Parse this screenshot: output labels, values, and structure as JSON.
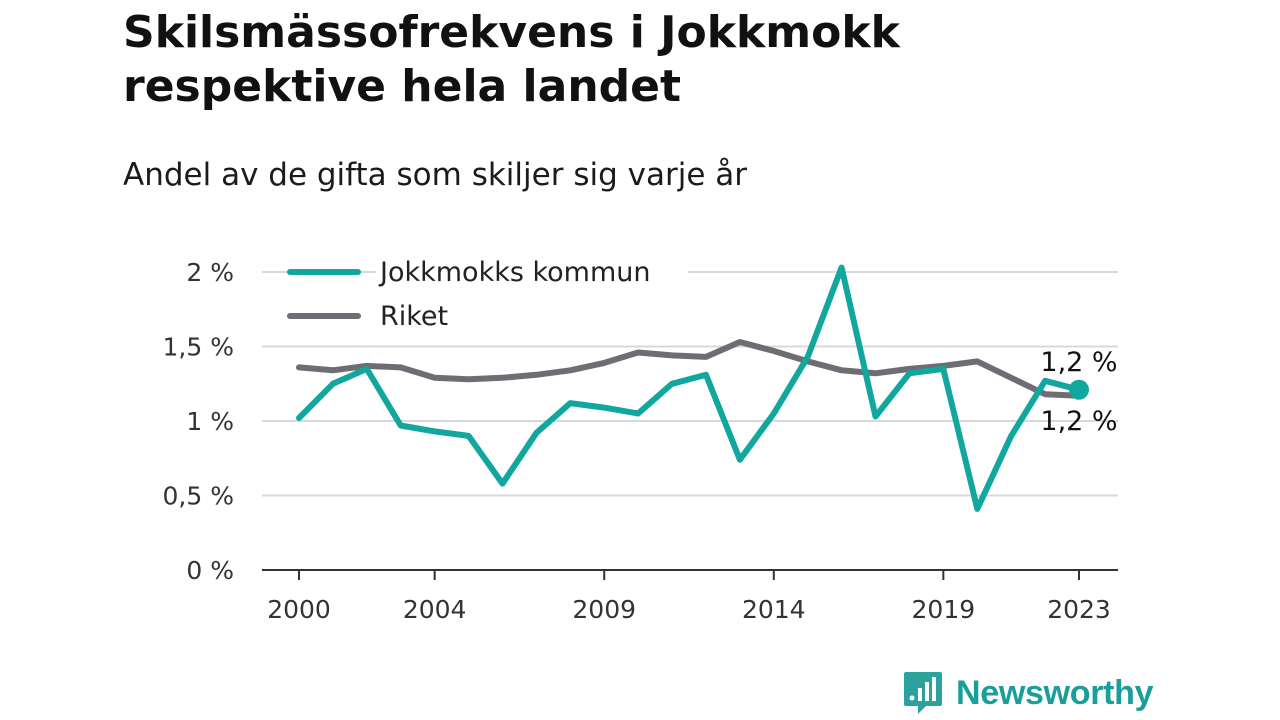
{
  "header": {
    "title": "Skilsmässofrekvens i Jokkmokk respektive hela landet",
    "subtitle": "Andel av de gifta som skiljer sig varje år"
  },
  "brand": {
    "name": "Newsworthy",
    "icon": "newsworthy-logo-icon",
    "color": "#1a9e99"
  },
  "chart_data": {
    "type": "line",
    "title": "Skilsmässofrekvens i Jokkmokk respektive hela landet",
    "subtitle": "Andel av de gifta som skiljer sig varje år",
    "x": [
      2000,
      2001,
      2002,
      2003,
      2004,
      2005,
      2006,
      2007,
      2008,
      2009,
      2010,
      2011,
      2012,
      2013,
      2014,
      2015,
      2016,
      2017,
      2018,
      2019,
      2020,
      2021,
      2022,
      2023
    ],
    "x_ticks": [
      2000,
      2004,
      2009,
      2014,
      2019,
      2023
    ],
    "y_ticks": [
      0,
      0.5,
      1,
      1.5,
      2
    ],
    "y_tick_labels": [
      "0 %",
      "0,5 %",
      "1 %",
      "1,5 %",
      "2 %"
    ],
    "ylim": [
      0,
      2
    ],
    "xlabel": "",
    "ylabel": "",
    "grid": "horizontal",
    "legend": "top-left",
    "series": [
      {
        "name": "Jokkmokks kommun",
        "color": "#11a79f",
        "values": [
          1.02,
          1.25,
          1.35,
          0.97,
          0.93,
          0.9,
          0.58,
          0.92,
          1.12,
          1.09,
          1.05,
          1.25,
          1.31,
          0.74,
          1.05,
          1.43,
          2.03,
          1.03,
          1.32,
          1.35,
          0.41,
          0.9,
          1.27,
          1.21
        ],
        "end_label": "1,2 %"
      },
      {
        "name": "Riket",
        "color": "#6e6d74",
        "values": [
          1.36,
          1.34,
          1.37,
          1.36,
          1.29,
          1.28,
          1.29,
          1.31,
          1.34,
          1.39,
          1.46,
          1.44,
          1.43,
          1.53,
          1.47,
          1.4,
          1.34,
          1.32,
          1.35,
          1.37,
          1.4,
          1.29,
          1.18,
          1.17
        ],
        "end_label": "1,2 %"
      }
    ]
  }
}
